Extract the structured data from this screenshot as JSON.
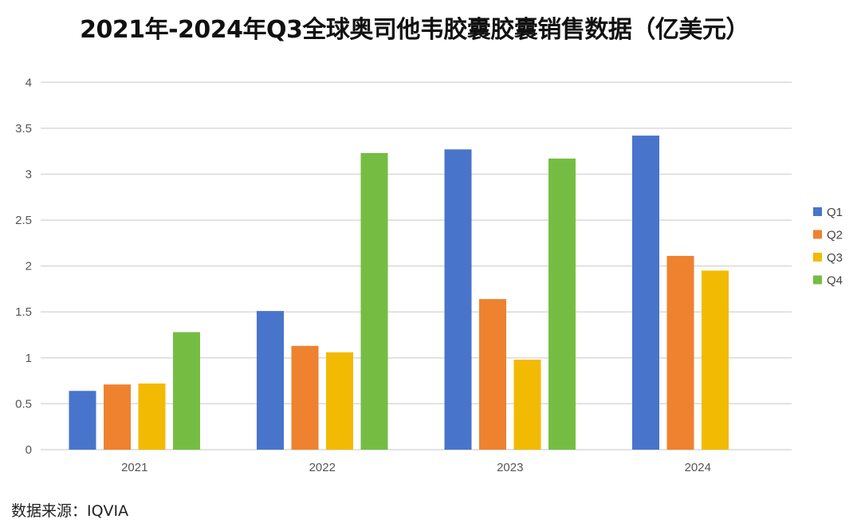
{
  "chart_data": {
    "type": "bar",
    "title": "2021年-2024年Q3全球奥司他韦胶囊胶囊销售数据（亿美元）",
    "categories": [
      "2021",
      "2022",
      "2023",
      "2024"
    ],
    "series": [
      {
        "name": "Q1",
        "color": "#4874CB",
        "values": [
          0.64,
          1.51,
          3.27,
          3.42
        ]
      },
      {
        "name": "Q2",
        "color": "#EE822F",
        "values": [
          0.71,
          1.13,
          1.64,
          2.11
        ]
      },
      {
        "name": "Q3",
        "color": "#F2BA02",
        "values": [
          0.72,
          1.06,
          0.98,
          1.95
        ]
      },
      {
        "name": "Q4",
        "color": "#75BD42",
        "values": [
          1.28,
          3.23,
          3.17,
          null
        ]
      }
    ],
    "yticks": [
      "0",
      "0.5",
      "1",
      "1.5",
      "2",
      "2.5",
      "3",
      "3.5",
      "4"
    ],
    "ylim": [
      0,
      4
    ],
    "grid": true,
    "legend_position": "right",
    "xlabel": "",
    "ylabel": ""
  },
  "source": "数据来源：IQVIA"
}
